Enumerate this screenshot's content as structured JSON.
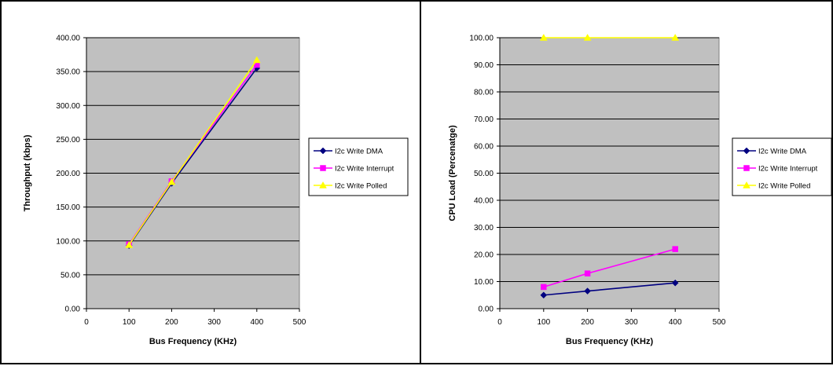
{
  "chart_data": [
    {
      "type": "line",
      "title": "",
      "xlabel": "Bus Frequency (KHz)",
      "ylabel": "Throughput (kbps)",
      "xlim": [
        0,
        500
      ],
      "ylim": [
        0,
        400
      ],
      "x_ticks": [
        "0",
        "100",
        "200",
        "300",
        "400",
        "500"
      ],
      "y_ticks": [
        "0.00",
        "50.00",
        "100.00",
        "150.00",
        "200.00",
        "250.00",
        "300.00",
        "350.00",
        "400.00"
      ],
      "grid": "horizontal",
      "legend_position": "right",
      "series": [
        {
          "name": "I2c Write DMA",
          "color": "#000080",
          "marker": "diamond",
          "x": [
            100,
            200,
            400
          ],
          "y": [
            93,
            185,
            355
          ]
        },
        {
          "name": "I2c Write Interrupt",
          "color": "#ff00ff",
          "marker": "square",
          "x": [
            100,
            200,
            400
          ],
          "y": [
            95,
            188,
            360
          ]
        },
        {
          "name": "I2c Write Polled",
          "color": "#ffff00",
          "marker": "triangle",
          "x": [
            100,
            200,
            400
          ],
          "y": [
            94,
            187,
            367
          ]
        }
      ]
    },
    {
      "type": "line",
      "title": "",
      "xlabel": "Bus Frequency (KHz)",
      "ylabel": "CPU Load (Percenatge)",
      "xlim": [
        0,
        500
      ],
      "ylim": [
        0,
        100
      ],
      "x_ticks": [
        "0",
        "100",
        "200",
        "300",
        "400",
        "500"
      ],
      "y_ticks": [
        "0.00",
        "10.00",
        "20.00",
        "30.00",
        "40.00",
        "50.00",
        "60.00",
        "70.00",
        "80.00",
        "90.00",
        "100.00"
      ],
      "grid": "horizontal",
      "legend_position": "right",
      "series": [
        {
          "name": "I2c Write DMA",
          "color": "#000080",
          "marker": "diamond",
          "x": [
            100,
            200,
            400
          ],
          "y": [
            5,
            6.5,
            9.5
          ]
        },
        {
          "name": "I2c Write Interrupt",
          "color": "#ff00ff",
          "marker": "square",
          "x": [
            100,
            200,
            400
          ],
          "y": [
            8,
            13,
            22
          ]
        },
        {
          "name": "I2c Write Polled",
          "color": "#ffff00",
          "marker": "triangle",
          "x": [
            100,
            200,
            400
          ],
          "y": [
            100,
            100,
            100
          ]
        }
      ]
    }
  ]
}
